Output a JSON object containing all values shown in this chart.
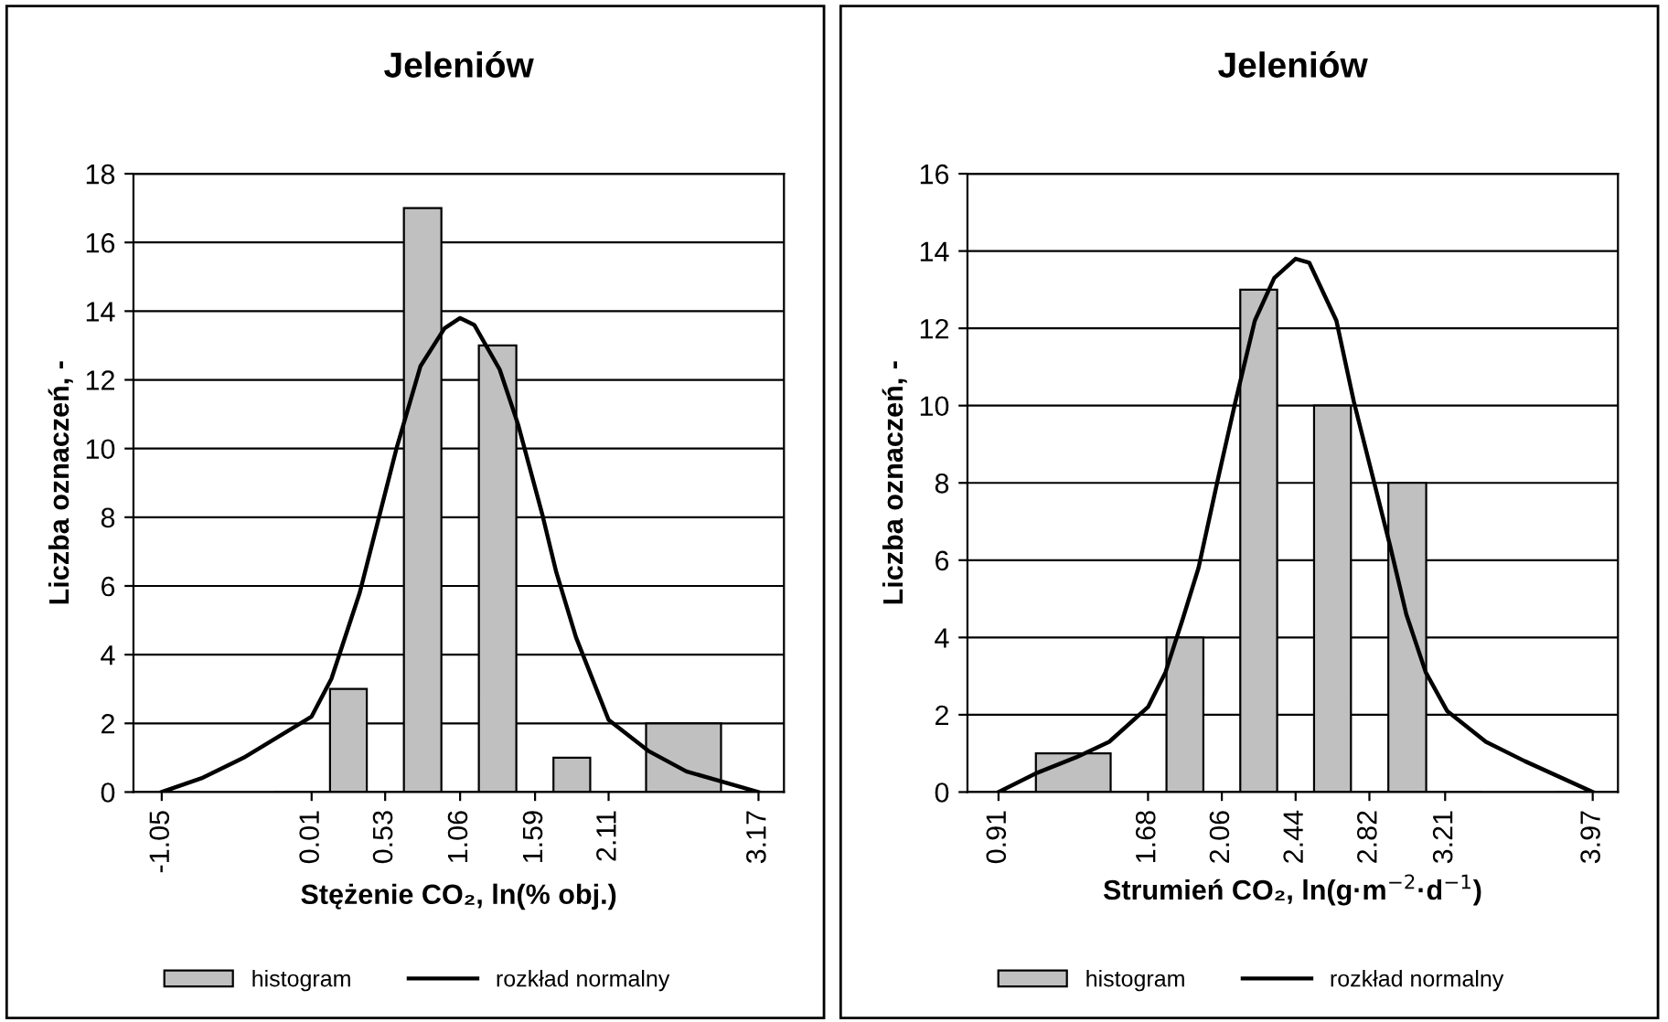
{
  "chart_data": [
    {
      "type": "histogram",
      "title": "Jeleniów",
      "xlabel": "Stężenie CO₂, ln(% obj.)",
      "ylabel": "Liczba oznaczeń, -",
      "bins": [
        -1.05,
        0.01,
        0.53,
        1.06,
        1.59,
        2.11,
        3.17
      ],
      "series": [
        {
          "name": "histogram",
          "color": "#c0c0c0",
          "values": [
            0,
            3,
            17,
            13,
            1,
            2
          ]
        },
        {
          "type": "line",
          "name": "rozkład normalny",
          "color": "#000000",
          "x": [
            -1.05,
            -0.77,
            -0.47,
            -0.27,
            0.01,
            0.15,
            0.35,
            0.48,
            0.61,
            0.78,
            0.95,
            1.06,
            1.16,
            1.34,
            1.47,
            1.64,
            1.74,
            1.88,
            2.11,
            2.39,
            2.66,
            3.17
          ],
          "values": [
            0,
            0.4,
            1.0,
            1.5,
            2.2,
            3.3,
            5.8,
            7.9,
            10,
            12.4,
            13.5,
            13.8,
            13.6,
            12.3,
            10.7,
            8.1,
            6.4,
            4.5,
            2.1,
            1.2,
            0.6,
            0
          ]
        }
      ],
      "xticks": [
        -1.05,
        0.01,
        0.53,
        1.06,
        1.59,
        2.11,
        3.17
      ],
      "xlim": [
        -1.25,
        3.35
      ],
      "ylim": [
        0,
        18
      ],
      "yticks": [
        0,
        2,
        4,
        6,
        8,
        10,
        12,
        14,
        16,
        18
      ],
      "grid": "y",
      "legend": "bottom"
    },
    {
      "type": "histogram",
      "title": "Jeleniów",
      "xlabel": "Strumień CO₂, ln(g·m$^{−2}$·d$^{−1}$)",
      "ylabel": "Liczba oznaczeń, -",
      "bins": [
        0.91,
        1.68,
        2.06,
        2.44,
        2.82,
        3.21,
        3.97
      ],
      "series": [
        {
          "name": "histogram",
          "color": "#c0c0c0",
          "values": [
            1,
            4,
            13,
            10,
            8,
            0
          ]
        },
        {
          "type": "line",
          "name": "rozkład normalny",
          "color": "#000000",
          "x": [
            0.91,
            1.11,
            1.31,
            1.48,
            1.68,
            1.77,
            1.86,
            1.94,
            2.04,
            2.13,
            2.23,
            2.33,
            2.44,
            2.51,
            2.65,
            2.74,
            2.84,
            2.93,
            3.01,
            3.11,
            3.22,
            3.42,
            3.62,
            3.97
          ],
          "values": [
            0,
            0.5,
            0.9,
            1.3,
            2.2,
            3.1,
            4.5,
            5.8,
            8.1,
            10.1,
            12.2,
            13.3,
            13.8,
            13.7,
            12.2,
            10.1,
            8.1,
            6.3,
            4.6,
            3.1,
            2.1,
            1.3,
            0.8,
            0
          ]
        }
      ],
      "xticks": [
        0.91,
        1.68,
        2.06,
        2.44,
        2.82,
        3.21,
        3.97
      ],
      "xlim": [
        0.75,
        4.1
      ],
      "ylim": [
        0,
        16
      ],
      "yticks": [
        0,
        2,
        4,
        6,
        8,
        10,
        12,
        14,
        16
      ],
      "grid": "y",
      "legend": "bottom"
    }
  ]
}
